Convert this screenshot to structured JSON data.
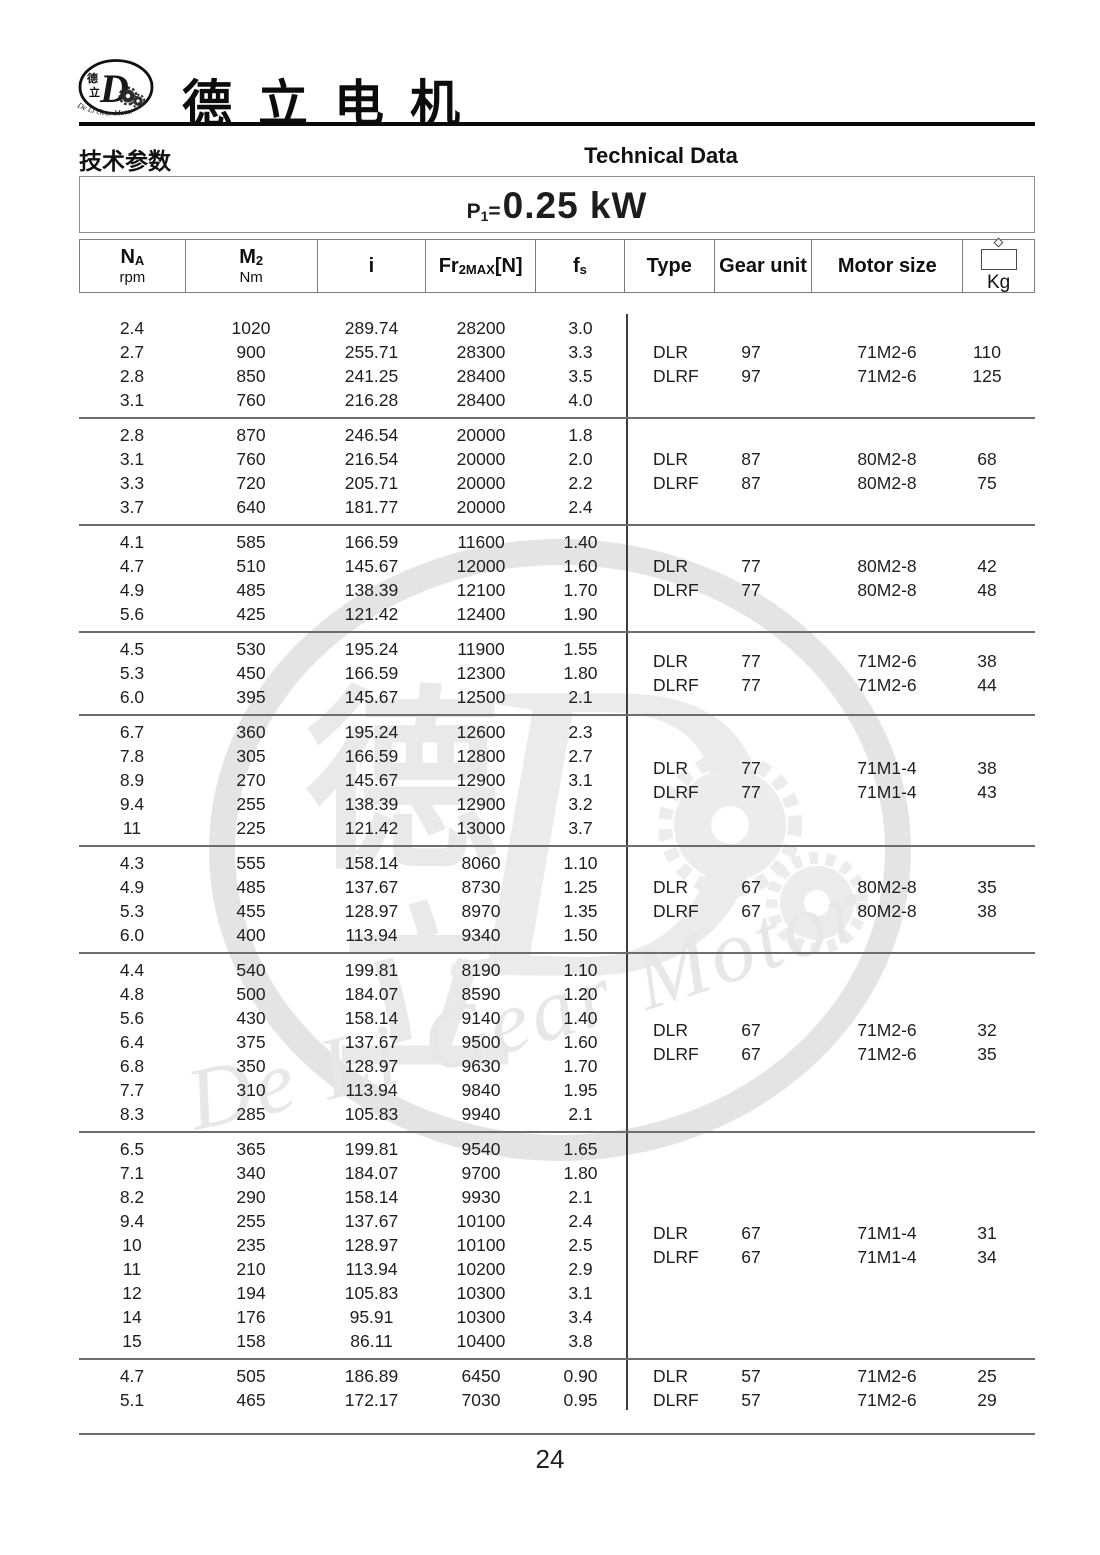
{
  "logo": {
    "d": "D",
    "cn1": "德",
    "cn2": "立",
    "script": "De Li Gear Motor"
  },
  "brand": {
    "name": "德立电机"
  },
  "section": {
    "title_cn": "技术参数",
    "title_en": "Technical Data"
  },
  "power": {
    "p": "P",
    "sub": "1",
    "eq": "=",
    "value": "0.25 kW"
  },
  "header_cols": [
    {
      "key": "na",
      "main": "N",
      "sub": "A",
      "unit": "rpm"
    },
    {
      "key": "m2",
      "main": "M",
      "sub": "2",
      "unit": "Nm"
    },
    {
      "key": "i",
      "main": "i"
    },
    {
      "key": "fr2max",
      "main": "Fr",
      "sub": "2MAX",
      "suffix": "[N]"
    },
    {
      "key": "fs",
      "main": "f",
      "sub": "s"
    },
    {
      "key": "type",
      "main": "Type"
    },
    {
      "key": "gear_unit",
      "main": "Gear unit"
    },
    {
      "key": "motor_size",
      "main": "Motor size"
    },
    {
      "key": "kg",
      "main": "Kg",
      "icon": "weight"
    }
  ],
  "groups": [
    {
      "rows": [
        [
          "2.4",
          "1020",
          "289.74",
          "28200",
          "3.0"
        ],
        [
          "2.7",
          "900",
          "255.71",
          "28300",
          "3.3"
        ],
        [
          "2.8",
          "850",
          "241.25",
          "28400",
          "3.5"
        ],
        [
          "3.1",
          "760",
          "216.28",
          "28400",
          "4.0"
        ]
      ],
      "types": [
        [
          "DLR",
          "97",
          "71M2-6",
          "110"
        ],
        [
          "DLRF",
          "97",
          "71M2-6",
          "125"
        ]
      ]
    },
    {
      "rows": [
        [
          "2.8",
          "870",
          "246.54",
          "20000",
          "1.8"
        ],
        [
          "3.1",
          "760",
          "216.54",
          "20000",
          "2.0"
        ],
        [
          "3.3",
          "720",
          "205.71",
          "20000",
          "2.2"
        ],
        [
          "3.7",
          "640",
          "181.77",
          "20000",
          "2.4"
        ]
      ],
      "types": [
        [
          "DLR",
          "87",
          "80M2-8",
          "68"
        ],
        [
          "DLRF",
          "87",
          "80M2-8",
          "75"
        ]
      ]
    },
    {
      "rows": [
        [
          "4.1",
          "585",
          "166.59",
          "11600",
          "1.40"
        ],
        [
          "4.7",
          "510",
          "145.67",
          "12000",
          "1.60"
        ],
        [
          "4.9",
          "485",
          "138.39",
          "12100",
          "1.70"
        ],
        [
          "5.6",
          "425",
          "121.42",
          "12400",
          "1.90"
        ]
      ],
      "types": [
        [
          "DLR",
          "77",
          "80M2-8",
          "42"
        ],
        [
          "DLRF",
          "77",
          "80M2-8",
          "48"
        ]
      ]
    },
    {
      "rows": [
        [
          "4.5",
          "530",
          "195.24",
          "11900",
          "1.55"
        ],
        [
          "5.3",
          "450",
          "166.59",
          "12300",
          "1.80"
        ],
        [
          "6.0",
          "395",
          "145.67",
          "12500",
          "2.1"
        ]
      ],
      "types": [
        [
          "DLR",
          "77",
          "71M2-6",
          "38"
        ],
        [
          "DLRF",
          "77",
          "71M2-6",
          "44"
        ]
      ]
    },
    {
      "rows": [
        [
          "6.7",
          "360",
          "195.24",
          "12600",
          "2.3"
        ],
        [
          "7.8",
          "305",
          "166.59",
          "12800",
          "2.7"
        ],
        [
          "8.9",
          "270",
          "145.67",
          "12900",
          "3.1"
        ],
        [
          "9.4",
          "255",
          "138.39",
          "12900",
          "3.2"
        ],
        [
          "11",
          "225",
          "121.42",
          "13000",
          "3.7"
        ]
      ],
      "types": [
        [
          "DLR",
          "77",
          "71M1-4",
          "38"
        ],
        [
          "DLRF",
          "77",
          "71M1-4",
          "43"
        ]
      ]
    },
    {
      "rows": [
        [
          "4.3",
          "555",
          "158.14",
          "8060",
          "1.10"
        ],
        [
          "4.9",
          "485",
          "137.67",
          "8730",
          "1.25"
        ],
        [
          "5.3",
          "455",
          "128.97",
          "8970",
          "1.35"
        ],
        [
          "6.0",
          "400",
          "113.94",
          "9340",
          "1.50"
        ]
      ],
      "types": [
        [
          "DLR",
          "67",
          "80M2-8",
          "35"
        ],
        [
          "DLRF",
          "67",
          "80M2-8",
          "38"
        ]
      ]
    },
    {
      "rows": [
        [
          "4.4",
          "540",
          "199.81",
          "8190",
          "1.10"
        ],
        [
          "4.8",
          "500",
          "184.07",
          "8590",
          "1.20"
        ],
        [
          "5.6",
          "430",
          "158.14",
          "9140",
          "1.40"
        ],
        [
          "6.4",
          "375",
          "137.67",
          "9500",
          "1.60"
        ],
        [
          "6.8",
          "350",
          "128.97",
          "9630",
          "1.70"
        ],
        [
          "7.7",
          "310",
          "113.94",
          "9840",
          "1.95"
        ],
        [
          "8.3",
          "285",
          "105.83",
          "9940",
          "2.1"
        ]
      ],
      "types": [
        [
          "DLR",
          "67",
          "71M2-6",
          "32"
        ],
        [
          "DLRF",
          "67",
          "71M2-6",
          "35"
        ]
      ]
    },
    {
      "rows": [
        [
          "6.5",
          "365",
          "199.81",
          "9540",
          "1.65"
        ],
        [
          "7.1",
          "340",
          "184.07",
          "9700",
          "1.80"
        ],
        [
          "8.2",
          "290",
          "158.14",
          "9930",
          "2.1"
        ],
        [
          "9.4",
          "255",
          "137.67",
          "10100",
          "2.4"
        ],
        [
          "10",
          "235",
          "128.97",
          "10100",
          "2.5"
        ],
        [
          "11",
          "210",
          "113.94",
          "10200",
          "2.9"
        ],
        [
          "12",
          "194",
          "105.83",
          "10300",
          "3.1"
        ],
        [
          "14",
          "176",
          "95.91",
          "10300",
          "3.4"
        ],
        [
          "15",
          "158",
          "86.11",
          "10400",
          "3.8"
        ]
      ],
      "types": [
        [
          "DLR",
          "67",
          "71M1-4",
          "31"
        ],
        [
          "DLRF",
          "67",
          "71M1-4",
          "34"
        ]
      ]
    },
    {
      "rows": [
        [
          "4.7",
          "505",
          "186.89",
          "6450",
          "0.90"
        ],
        [
          "5.1",
          "465",
          "172.17",
          "7030",
          "0.95"
        ]
      ],
      "types": [
        [
          "DLR",
          "57",
          "71M2-6",
          "25"
        ],
        [
          "DLRF",
          "57",
          "71M2-6",
          "29"
        ]
      ]
    }
  ],
  "footer": {
    "page": "24"
  },
  "watermark": {
    "d": "D",
    "cn1": "德",
    "cn2": "立",
    "script": "De Li Gear Motor"
  }
}
